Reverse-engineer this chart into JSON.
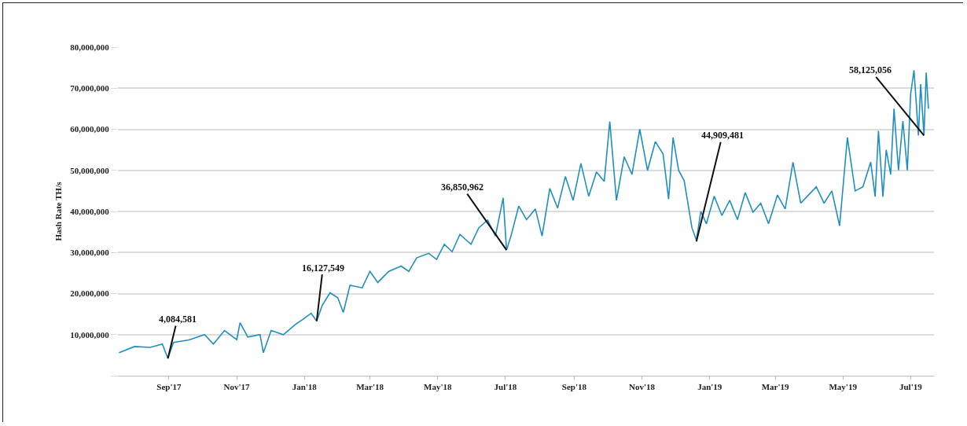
{
  "chart_data": {
    "type": "line",
    "ylabel": "Hash Rate TH/s",
    "x": [
      "2017-07-18",
      "2017-08-01",
      "2017-08-15",
      "2017-08-26",
      "2017-08-31",
      "2017-09-05",
      "2017-09-19",
      "2017-10-03",
      "2017-10-11",
      "2017-10-21",
      "2017-11-01",
      "2017-11-04",
      "2017-11-11",
      "2017-11-22",
      "2017-11-25",
      "2017-12-02",
      "2017-12-13",
      "2017-12-24",
      "2017-12-31",
      "2018-01-07",
      "2018-01-12",
      "2018-01-17",
      "2018-01-24",
      "2018-01-31",
      "2018-02-05",
      "2018-02-11",
      "2018-02-22",
      "2018-03-01",
      "2018-03-08",
      "2018-03-18",
      "2018-03-29",
      "2018-04-05",
      "2018-04-12",
      "2018-04-23",
      "2018-04-30",
      "2018-05-07",
      "2018-05-14",
      "2018-05-21",
      "2018-05-31",
      "2018-06-07",
      "2018-06-15",
      "2018-06-22",
      "2018-06-29",
      "2018-07-02",
      "2018-07-06",
      "2018-07-13",
      "2018-07-20",
      "2018-07-28",
      "2018-08-03",
      "2018-08-10",
      "2018-08-17",
      "2018-08-24",
      "2018-08-31",
      "2018-09-07",
      "2018-09-14",
      "2018-09-21",
      "2018-09-28",
      "2018-10-03",
      "2018-10-09",
      "2018-10-16",
      "2018-10-23",
      "2018-10-30",
      "2018-11-06",
      "2018-11-13",
      "2018-11-20",
      "2018-11-25",
      "2018-11-29",
      "2018-12-04",
      "2018-12-09",
      "2018-12-13",
      "2018-12-16",
      "2018-12-20",
      "2018-12-24",
      "2018-12-29",
      "2019-01-05",
      "2019-01-12",
      "2019-01-19",
      "2019-01-26",
      "2019-02-02",
      "2019-02-09",
      "2019-02-16",
      "2019-02-23",
      "2019-03-03",
      "2019-03-10",
      "2019-03-17",
      "2019-03-24",
      "2019-03-31",
      "2019-04-07",
      "2019-04-14",
      "2019-04-21",
      "2019-04-28",
      "2019-05-05",
      "2019-05-12",
      "2019-05-19",
      "2019-05-26",
      "2019-05-30",
      "2019-06-02",
      "2019-06-06",
      "2019-06-09",
      "2019-06-13",
      "2019-06-16",
      "2019-06-20",
      "2019-06-24",
      "2019-06-28",
      "2019-07-01",
      "2019-07-04",
      "2019-07-08",
      "2019-07-10",
      "2019-07-13",
      "2019-07-15",
      "2019-07-17"
    ],
    "series": [
      {
        "color": "#1f8fc0",
        "values": [
          5600000,
          7100000,
          6900000,
          7700000,
          4200000,
          8100000,
          8700000,
          10000000,
          7700000,
          11000000,
          8800000,
          12900000,
          9400000,
          10000000,
          5600000,
          11000000,
          10000000,
          12500000,
          13800000,
          15200000,
          13300000,
          17100000,
          20200000,
          19000000,
          15400000,
          22000000,
          21400000,
          25400000,
          22700000,
          25400000,
          26700000,
          25400000,
          28700000,
          29800000,
          28300000,
          32000000,
          30200000,
          34400000,
          32000000,
          36000000,
          37900000,
          34000000,
          43300000,
          30600000,
          34000000,
          41300000,
          38000000,
          40600000,
          34000000,
          45600000,
          40800000,
          48500000,
          42700000,
          51700000,
          43700000,
          49600000,
          47300000,
          61900000,
          42700000,
          53300000,
          49000000,
          60000000,
          50000000,
          57000000,
          54000000,
          43000000,
          58000000,
          50000000,
          47500000,
          41000000,
          36000000,
          33000000,
          40000000,
          37000000,
          43700000,
          39000000,
          42700000,
          38000000,
          44600000,
          39800000,
          42000000,
          37000000,
          44000000,
          40600000,
          52000000,
          42000000,
          44000000,
          46000000,
          42000000,
          45000000,
          36500000,
          58000000,
          45000000,
          46000000,
          52000000,
          43600000,
          59600000,
          43600000,
          55000000,
          49000000,
          65000000,
          50000000,
          62000000,
          50000000,
          68600000,
          74400000,
          58500000,
          71000000,
          58500000,
          73800000,
          65000000
        ]
      }
    ],
    "xlim": [
      "2017-07-17",
      "2019-07-22"
    ],
    "xticks": [
      {
        "value": "2017-09-01",
        "label": "Sep'17"
      },
      {
        "value": "2017-11-01",
        "label": "Nov'17"
      },
      {
        "value": "2018-01-01",
        "label": "Jan'18"
      },
      {
        "value": "2018-03-01",
        "label": "Mar'18"
      },
      {
        "value": "2018-05-01",
        "label": "May'18"
      },
      {
        "value": "2018-07-01",
        "label": "Jul'18"
      },
      {
        "value": "2018-09-01",
        "label": "Sep'18"
      },
      {
        "value": "2018-11-01",
        "label": "Nov'18"
      },
      {
        "value": "2019-01-01",
        "label": "Jan'19"
      },
      {
        "value": "2019-03-01",
        "label": "Mar'19"
      },
      {
        "value": "2019-05-01",
        "label": "May'19"
      },
      {
        "value": "2019-07-01",
        "label": "Jul'19"
      }
    ],
    "ylim": [
      0,
      80000000
    ],
    "yticks": [
      {
        "value": 0,
        "label": null
      },
      {
        "value": 10000000,
        "label": "10,000,000"
      },
      {
        "value": 20000000,
        "label": "20,000,000"
      },
      {
        "value": 30000000,
        "label": "30,000,000"
      },
      {
        "value": 40000000,
        "label": "40,000,000"
      },
      {
        "value": 50000000,
        "label": "50,000,000"
      },
      {
        "value": 60000000,
        "label": "60,000,000"
      },
      {
        "value": 70000000,
        "label": "70,000,000"
      },
      {
        "value": 80000000,
        "label": "80,000,000"
      }
    ],
    "grid": "y",
    "marker": "none",
    "line_style": "solid",
    "annotations": [
      {
        "text": "4,084,581",
        "x": "2017-08-31",
        "y": 4200000
      },
      {
        "text": "16,127,549",
        "x": "2018-01-12",
        "y": 13300000
      },
      {
        "text": "36,850,962",
        "x": "2018-07-02",
        "y": 30600000
      },
      {
        "text": "44,909,481",
        "x": "2018-12-20",
        "y": 32700000
      },
      {
        "text": "58,125,056",
        "x": "2019-07-13",
        "y": 58500000
      }
    ]
  }
}
